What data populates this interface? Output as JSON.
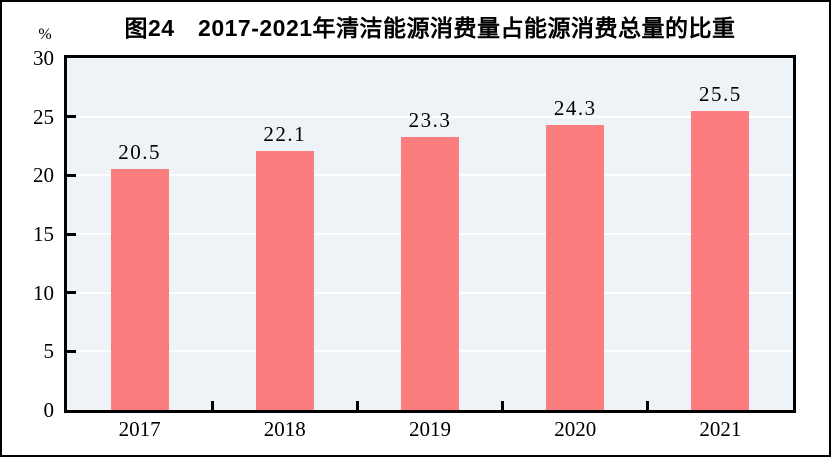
{
  "chart_data": {
    "type": "bar",
    "title": "图24　2017-2021年清洁能源消费量占能源消费总量的比重",
    "categories": [
      "2017",
      "2018",
      "2019",
      "2020",
      "2021"
    ],
    "values": [
      20.5,
      22.1,
      23.3,
      24.3,
      25.5
    ],
    "value_labels": [
      "20.5",
      "22.1",
      "23.3",
      "24.3",
      "25.5"
    ],
    "xlabel": "",
    "ylabel": "%",
    "ylim": [
      0,
      30
    ],
    "yticks": [
      0,
      5,
      10,
      15,
      20,
      25,
      30
    ],
    "grid": true,
    "legend_position": "none",
    "colors": {
      "bar": "#FC7D7D",
      "plot_background": "#EDF3F6",
      "gridline": "#FFFFFF",
      "axis": "#000000",
      "text": "#000000",
      "background": "#FFFFFF"
    }
  }
}
